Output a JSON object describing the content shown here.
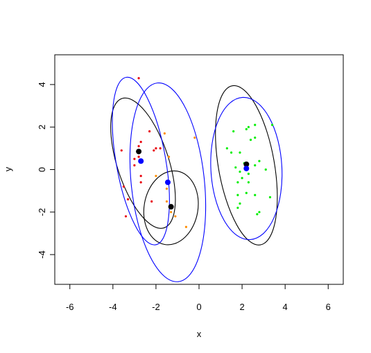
{
  "chart_data": {
    "type": "scatter",
    "title": "",
    "xlabel": "x",
    "ylabel": "y",
    "xlim": [
      -6.7,
      6.7
    ],
    "ylim": [
      -5.4,
      5.4
    ],
    "xticks": [
      -6,
      -4,
      -2,
      0,
      2,
      4,
      6
    ],
    "yticks": [
      -4,
      -2,
      0,
      2,
      4
    ],
    "xtick_labels": [
      "-6",
      "-4",
      "-2",
      "0",
      "2",
      "4",
      "6"
    ],
    "ytick_labels": [
      "-4",
      "-2",
      "0",
      "2",
      "4"
    ],
    "grid": false,
    "series": [
      {
        "color": "#e8000b",
        "points": [
          [
            -2.8,
            4.3
          ],
          [
            -2.3,
            1.8
          ],
          [
            -3.6,
            0.9
          ],
          [
            -2.0,
            1.0
          ],
          [
            -2.7,
            1.3
          ],
          [
            -2.8,
            1.1
          ],
          [
            -2.1,
            0.9
          ],
          [
            -2.8,
            0.6
          ],
          [
            -3.0,
            0.2
          ],
          [
            -2.7,
            -0.3
          ],
          [
            -2.7,
            -0.6
          ],
          [
            -3.5,
            -0.8
          ],
          [
            -2.2,
            -1.5
          ],
          [
            -3.3,
            -1.4
          ],
          [
            -3.4,
            -2.2
          ],
          [
            -3.0,
            0.5
          ],
          [
            -1.8,
            1.0
          ]
        ]
      },
      {
        "color": "#ff8c00",
        "points": [
          [
            -1.6,
            1.7
          ],
          [
            -0.2,
            1.5
          ],
          [
            -1.4,
            0.6
          ],
          [
            -1.5,
            -0.9
          ],
          [
            -1.5,
            -1.5
          ],
          [
            -1.3,
            -2.0
          ],
          [
            -1.1,
            -2.2
          ],
          [
            -0.6,
            -2.7
          ],
          [
            -2.0,
            -0.3
          ]
        ]
      },
      {
        "color": "#00ee00",
        "points": [
          [
            3.4,
            2.1
          ],
          [
            2.6,
            2.1
          ],
          [
            2.3,
            2.0
          ],
          [
            2.2,
            1.9
          ],
          [
            1.6,
            1.8
          ],
          [
            2.6,
            1.5
          ],
          [
            2.4,
            1.4
          ],
          [
            1.3,
            1.0
          ],
          [
            1.5,
            0.8
          ],
          [
            1.9,
            0.8
          ],
          [
            2.8,
            0.4
          ],
          [
            2.1,
            0.3
          ],
          [
            2.6,
            0.2
          ],
          [
            1.7,
            0.1
          ],
          [
            3.1,
            0.0
          ],
          [
            1.9,
            -0.1
          ],
          [
            2.3,
            -0.2
          ],
          [
            2.0,
            -0.4
          ],
          [
            2.3,
            -0.6
          ],
          [
            1.8,
            -0.6
          ],
          [
            3.3,
            -1.3
          ],
          [
            2.2,
            -1.1
          ],
          [
            1.8,
            -1.2
          ],
          [
            2.6,
            -1.2
          ],
          [
            1.9,
            -1.6
          ],
          [
            1.8,
            -1.8
          ],
          [
            2.8,
            -2.0
          ],
          [
            2.7,
            -2.1
          ]
        ]
      }
    ],
    "centers_black": [
      [
        -2.8,
        0.85
      ],
      [
        -1.3,
        -1.75
      ],
      [
        2.2,
        0.25
      ]
    ],
    "centers_blue": [
      [
        -2.7,
        0.4
      ],
      [
        -1.45,
        -0.6
      ],
      [
        2.2,
        0.05
      ]
    ],
    "ellipses_black": [
      {
        "cx": -2.6,
        "cy": 0.3,
        "rx": 1.2,
        "ry": 3.2,
        "tilt": -18
      },
      {
        "cx": -1.3,
        "cy": -1.8,
        "rx": 1.25,
        "ry": 1.75,
        "tilt": 10
      },
      {
        "cx": 2.2,
        "cy": 0.2,
        "rx": 1.3,
        "ry": 3.8,
        "tilt": -10
      }
    ],
    "ellipses_blue": [
      {
        "cx": -2.7,
        "cy": 0.4,
        "rx": 1.15,
        "ry": 4.0,
        "tilt": -10
      },
      {
        "cx": -1.45,
        "cy": -0.6,
        "rx": 1.7,
        "ry": 4.7,
        "tilt": -6
      },
      {
        "cx": 2.2,
        "cy": 0.05,
        "rx": 1.65,
        "ry": 3.35,
        "tilt": -3
      }
    ]
  }
}
